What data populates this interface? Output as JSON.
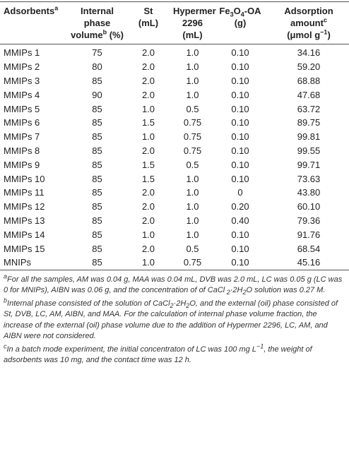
{
  "table": {
    "header": [
      [
        [
          "Adsorbents",
          {
            "sup": "a"
          }
        ]
      ],
      [
        [
          "Internal"
        ],
        [
          "phase"
        ],
        [
          "volume",
          {
            "sup": "b"
          },
          " (%)"
        ]
      ],
      [
        [
          "St"
        ],
        [
          "(mL)"
        ]
      ],
      [
        [
          "Hypermer"
        ],
        [
          "2296"
        ],
        [
          "(mL)"
        ]
      ],
      [
        [
          "Fe",
          {
            "sub": "3"
          },
          "O",
          {
            "sub": "4"
          },
          "-OA"
        ],
        [
          "(g)"
        ]
      ],
      [
        [
          "Adsorption"
        ],
        [
          "amount",
          {
            "sup": "c"
          }
        ],
        [
          "(μmol g",
          {
            "sup": "−1"
          },
          ")"
        ]
      ]
    ],
    "rows": [
      [
        "MMIPs 1",
        "75",
        "2.0",
        "1.0",
        "0.10",
        "34.16"
      ],
      [
        "MMIPs 2",
        "80",
        "2.0",
        "1.0",
        "0.10",
        "59.20"
      ],
      [
        "MMIPs 3",
        "85",
        "2.0",
        "1.0",
        "0.10",
        "68.88"
      ],
      [
        "MMIPs 4",
        "90",
        "2.0",
        "1.0",
        "0.10",
        "47.68"
      ],
      [
        "MMIPs 5",
        "85",
        "1.0",
        "0.5",
        "0.10",
        "63.72"
      ],
      [
        "MMIPs 6",
        "85",
        "1.5",
        "0.75",
        "0.10",
        "89.75"
      ],
      [
        "MMIPs 7",
        "85",
        "1.0",
        "0.75",
        "0.10",
        "99.81"
      ],
      [
        "MMIPs 8",
        "85",
        "2.0",
        "0.75",
        "0.10",
        "99.55"
      ],
      [
        "MMIPs 9",
        "85",
        "1.5",
        "0.5",
        "0.10",
        "99.71"
      ],
      [
        "MMIPs 10",
        "85",
        "1.5",
        "1.0",
        "0.10",
        "73.63"
      ],
      [
        "MMIPs 11",
        "85",
        "2.0",
        "1.0",
        "0",
        "43.80"
      ],
      [
        "MMIPs 12",
        "85",
        "2.0",
        "1.0",
        "0.20",
        "60.10"
      ],
      [
        "MMIPs 13",
        "85",
        "2.0",
        "1.0",
        "0.40",
        "79.36"
      ],
      [
        "MMIPs 14",
        "85",
        "1.0",
        "1.0",
        "0.10",
        "91.76"
      ],
      [
        "MMIPs 15",
        "85",
        "2.0",
        "0.5",
        "0.10",
        "68.54"
      ],
      [
        "MNIPs",
        "85",
        "1.0",
        "0.75",
        "0.10",
        "45.16"
      ]
    ]
  },
  "footnotes": [
    [
      {
        "sup": "a"
      },
      "For all the samples, AM was 0.04 g, MAA was 0.04 mL, DVB was 2.0 mL, LC was 0.05 g (LC was 0 for MNIPs), AIBN was 0.06 g, and the concentration of of CaCl",
      {
        "sub": " 2"
      },
      "·2H",
      {
        "sub": "2"
      },
      "O solution was 0.27 M."
    ],
    [
      {
        "sup": "b"
      },
      "Internal phase consisted of the solution of CaCl",
      {
        "sub": "2"
      },
      "·2H",
      {
        "sub": "2"
      },
      "O, and the external (oil) phase consisted of St, DVB, LC, AM, AIBN, and MAA. For the calculation of internal phase volume fraction, the increase of the external (oil) phase volume due to the addition of Hypermer 2296, LC, AM, and AIBN were not considered."
    ],
    [
      {
        "sup": "c"
      },
      "In a batch mode experiment, the initial concentraton of LC was 100 mg L",
      {
        "sup": "−1"
      },
      ", the weight of adsorbents was 10 mg, and the contact time was 12 h."
    ]
  ]
}
